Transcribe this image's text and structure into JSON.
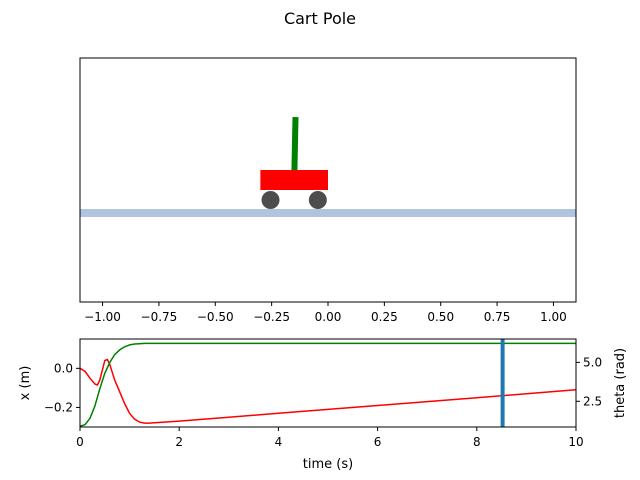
{
  "title": "Cart Pole",
  "chart_data": [
    {
      "type": "scene",
      "title": "Cart Pole",
      "xlim": [
        -1.1,
        1.1
      ],
      "x_ticks": [
        -1.0,
        -0.75,
        -0.5,
        -0.25,
        0.0,
        0.25,
        0.5,
        0.75,
        1.0
      ],
      "x_tick_labels": [
        "−1.00",
        "−0.75",
        "−0.50",
        "−0.25",
        "0.00",
        "0.25",
        "0.50",
        "0.75",
        "1.00"
      ],
      "cart_position": -0.15,
      "cart_width": 0.3,
      "pole_angle_rad": 0.02,
      "colors": {
        "track": "#b0c4de",
        "cart": "#ff0000",
        "pole": "#008000",
        "wheel": "#4d4d4d"
      }
    },
    {
      "type": "line",
      "xlabel": "time (s)",
      "ylabel_left": "x (m)",
      "ylabel_right": "theta (rad)",
      "xlim": [
        0,
        10
      ],
      "ylim_left": [
        -0.3,
        0.15
      ],
      "ylim_right": [
        0.85,
        6.5
      ],
      "x_ticks": [
        0,
        2,
        4,
        6,
        8,
        10
      ],
      "x_tick_labels": [
        "0",
        "2",
        "4",
        "6",
        "8",
        "10"
      ],
      "y_left_ticks": [
        0.0,
        -0.2
      ],
      "y_left_tick_labels": [
        "0.0",
        "−0.2"
      ],
      "y_right_ticks": [
        5.0,
        2.5
      ],
      "y_right_tick_labels": [
        "5.0",
        "2.5"
      ],
      "current_time": 8.52,
      "cursor_color": "#1f77b4",
      "series": [
        {
          "axis": "left",
          "color": "#ff0000",
          "x": [
            0,
            0.1,
            0.2,
            0.3,
            0.35,
            0.4,
            0.45,
            0.5,
            0.55,
            0.6,
            0.65,
            0.7,
            0.75,
            0.8,
            0.9,
            1.0,
            1.1,
            1.2,
            1.3,
            1.4,
            1.5,
            2,
            3,
            4,
            5,
            6,
            7,
            8,
            9,
            10
          ],
          "y": [
            0.0,
            -0.015,
            -0.05,
            -0.08,
            -0.085,
            -0.06,
            -0.01,
            0.04,
            0.045,
            0.02,
            -0.02,
            -0.06,
            -0.09,
            -0.12,
            -0.18,
            -0.23,
            -0.26,
            -0.275,
            -0.28,
            -0.28,
            -0.278,
            -0.27,
            -0.25,
            -0.23,
            -0.21,
            -0.19,
            -0.17,
            -0.15,
            -0.13,
            -0.11
          ]
        },
        {
          "axis": "right",
          "color": "#008000",
          "x": [
            0,
            0.1,
            0.2,
            0.3,
            0.4,
            0.5,
            0.6,
            0.7,
            0.8,
            0.9,
            1.0,
            1.1,
            1.2,
            1.3,
            1.4,
            1.5,
            2,
            10
          ],
          "y": [
            0.9,
            1.0,
            1.4,
            2.2,
            3.3,
            4.3,
            5.0,
            5.5,
            5.8,
            6.0,
            6.12,
            6.18,
            6.2,
            6.22,
            6.22,
            6.22,
            6.22,
            6.22
          ]
        }
      ]
    }
  ]
}
